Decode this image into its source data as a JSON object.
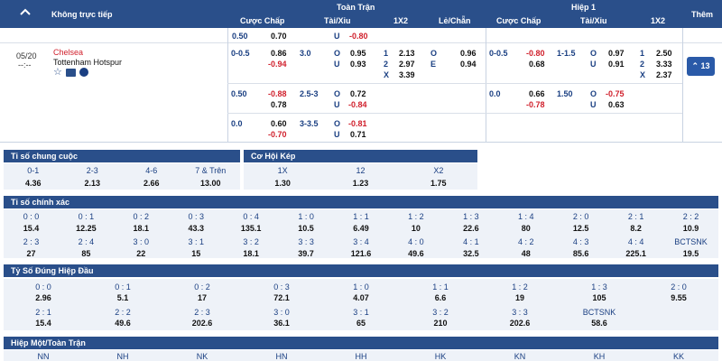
{
  "header": {
    "collapse_icon": "chevron-up-icon",
    "live_label": "Không trực tiếp",
    "full_match": "Toàn Trận",
    "half1": "Hiệp 1",
    "more": "Thêm",
    "cols_full": [
      "Cược Chấp",
      "Tài/Xỉu",
      "1X2",
      "Lẻ/Chẵn"
    ],
    "cols_half": [
      "Cược Chấp",
      "Tài/Xỉu",
      "1X2"
    ]
  },
  "summary_row": {
    "h": "0.50",
    "hv": "0.70",
    "u": "U",
    "uv": "-0.80"
  },
  "match": {
    "date": "05/20",
    "time": "--:--",
    "home": "Chelsea",
    "away": "Tottenham Hotspur",
    "more_count": "13",
    "rows": [
      {
        "h": "0-0.5",
        "hv1": "0.86",
        "hv2": "-0.94",
        "ou": "3.0",
        "o": "O",
        "ov": "0.95",
        "u": "U",
        "uv": "0.93",
        "x1": "1",
        "x1v": "2.13",
        "x2": "2",
        "x2v": "2.97",
        "xx": "X",
        "xxv": "3.39",
        "oe1": "O",
        "oe1v": "0.96",
        "oe2": "E",
        "oe2v": "0.94",
        "hh": "0-0.5",
        "hhv1": "-0.80",
        "hhv2": "0.68",
        "hou": "1-1.5",
        "ho": "O",
        "hov": "0.97",
        "hu": "U",
        "huv": "0.91",
        "h1": "1",
        "h1v": "2.50",
        "h2": "2",
        "h2v": "3.33",
        "hx": "X",
        "hxv": "2.37"
      },
      {
        "h": "0.50",
        "hv1": "-0.88",
        "hv2": "0.78",
        "ou": "2.5-3",
        "o": "O",
        "ov": "0.72",
        "u": "U",
        "uv": "-0.84",
        "hh": "0.0",
        "hhv1": "0.66",
        "hhv2": "-0.78",
        "hou": "1.50",
        "ho": "O",
        "hov": "-0.75",
        "hu": "U",
        "huv": "0.63"
      },
      {
        "h": "0.0",
        "hv1": "0.60",
        "hv2": "-0.70",
        "ou": "3-3.5",
        "o": "O",
        "ov": "-0.81",
        "u": "U",
        "uv": "0.71"
      }
    ]
  },
  "ti_so_chung_cuoc": {
    "title": "Tỉ số chung cuộc",
    "labels": [
      "0-1",
      "2-3",
      "4-6",
      "7 & Trên"
    ],
    "values": [
      "4.36",
      "2.13",
      "2.66",
      "13.00"
    ]
  },
  "co_hoi_kep": {
    "title": "Cơ Hội Kép",
    "labels": [
      "1X",
      "12",
      "X2"
    ],
    "values": [
      "1.30",
      "1.23",
      "1.75"
    ]
  },
  "ti_so_chinh_xac": {
    "title": "Tỉ số chính xác",
    "row1_labels": [
      "0 : 0",
      "0 : 1",
      "0 : 2",
      "0 : 3",
      "0 : 4",
      "1 : 0",
      "1 : 1",
      "1 : 2",
      "1 : 3",
      "1 : 4",
      "2 : 0",
      "2 : 1",
      "2 : 2"
    ],
    "row1_values": [
      "15.4",
      "12.25",
      "18.1",
      "43.3",
      "135.1",
      "10.5",
      "6.49",
      "10",
      "22.6",
      "80",
      "12.5",
      "8.2",
      "10.9"
    ],
    "row2_labels": [
      "2 : 3",
      "2 : 4",
      "3 : 0",
      "3 : 1",
      "3 : 2",
      "3 : 3",
      "3 : 4",
      "4 : 0",
      "4 : 1",
      "4 : 2",
      "4 : 3",
      "4 : 4",
      "BCTSNK"
    ],
    "row2_values": [
      "27",
      "85",
      "22",
      "15",
      "18.1",
      "39.7",
      "121.6",
      "49.6",
      "32.5",
      "48",
      "85.6",
      "225.1",
      "19.5"
    ]
  },
  "ti_so_hiep_dau": {
    "title": "Tỷ Số Đúng Hiệp Đầu",
    "row1_labels": [
      "0 : 0",
      "0 : 1",
      "0 : 2",
      "0 : 3",
      "1 : 0",
      "1 : 1",
      "1 : 2",
      "1 : 3",
      "2 : 0"
    ],
    "row1_values": [
      "2.96",
      "5.1",
      "17",
      "72.1",
      "4.07",
      "6.6",
      "19",
      "105",
      "9.55"
    ],
    "row2_labels": [
      "2 : 1",
      "2 : 2",
      "2 : 3",
      "3 : 0",
      "3 : 1",
      "3 : 2",
      "3 : 3",
      "BCTSNK"
    ],
    "row2_values": [
      "15.4",
      "49.6",
      "202.6",
      "36.1",
      "65",
      "210",
      "202.6",
      "58.6"
    ]
  },
  "hiep_mot_toan_tran": {
    "title": "Hiệp Một/Toàn Trận",
    "labels": [
      "NN",
      "NH",
      "NK",
      "HN",
      "HH",
      "HK",
      "KN",
      "KH",
      "KK"
    ]
  },
  "colors": {
    "header_bg": "#2a4f8a",
    "blue_text": "#1a3f82",
    "red_text": "#d0202c",
    "button": "#2a5aa8"
  }
}
